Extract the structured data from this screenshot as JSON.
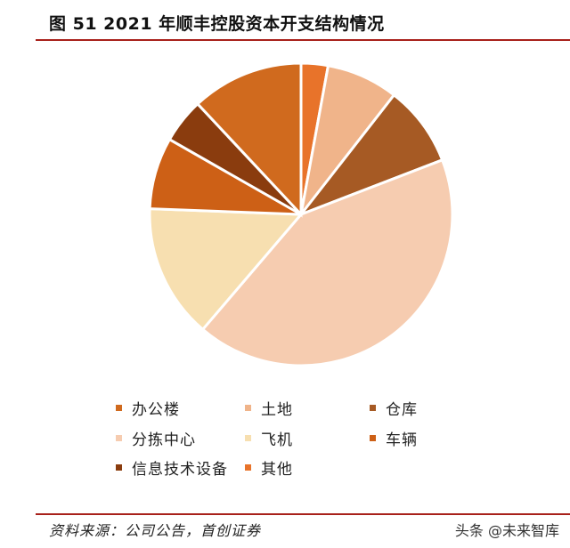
{
  "title": "图 51 2021 年顺丰控股资本开支结构情况",
  "source": "资料来源：公司公告，首创证券",
  "watermark": "头条 @未来智库",
  "colors": {
    "rule": "#a8201a"
  },
  "chart_data": {
    "type": "pie",
    "title": "图 51 2021 年顺丰控股资本开支结构情况",
    "unit": "%",
    "legend_position": "bottom",
    "slices": [
      {
        "label": "其他",
        "value": 3.0,
        "color": "#e8732a"
      },
      {
        "label": "土地",
        "value": 8.0,
        "color": "#f0b48a"
      },
      {
        "label": "仓库",
        "value": 9.0,
        "color": "#a65a24"
      },
      {
        "label": "分拣中心",
        "value": 44.0,
        "color": "#f6ccb0"
      },
      {
        "label": "飞机",
        "value": 15.0,
        "color": "#f7dfb0"
      },
      {
        "label": "车辆",
        "value": 8.0,
        "color": "#cd6016"
      },
      {
        "label": "信息技术设备",
        "value": 5.0,
        "color": "#8a3c0e"
      },
      {
        "label": "办公楼",
        "value": 12.5,
        "color": "#d06a1e"
      }
    ],
    "legend_order": [
      "办公楼",
      "土地",
      "仓库",
      "分拣中心",
      "飞机",
      "车辆",
      "信息技术设备",
      "其他"
    ]
  }
}
